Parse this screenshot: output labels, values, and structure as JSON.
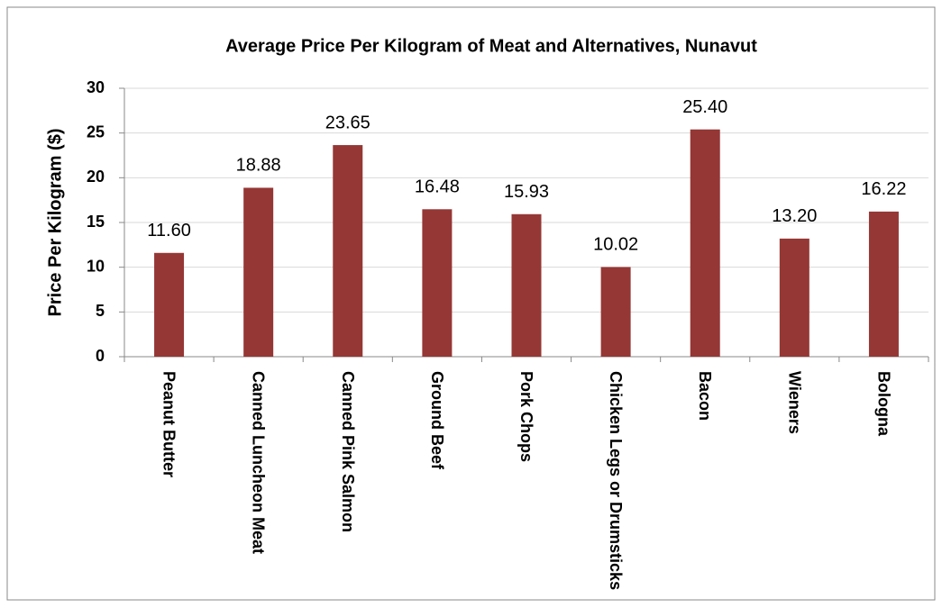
{
  "chart_data": {
    "type": "bar",
    "title": "Average Price Per Kilogram of Meat and Alternatives, Nunavut",
    "y_label": "Price Per Kilogram ($)",
    "categories": [
      "Peanut Butter",
      "Canned Luncheon Meat",
      "Canned Pink Salmon",
      "Ground Beef",
      "Pork Chops",
      "Chicken Legs or Drumsticks",
      "Bacon",
      "Wieners",
      "Bologna"
    ],
    "values": [
      11.6,
      18.88,
      23.65,
      16.48,
      15.93,
      10.02,
      25.4,
      13.2,
      16.22
    ],
    "value_labels": [
      "11.60",
      "18.88",
      "23.65",
      "16.48",
      "15.93",
      "10.02",
      "25.40",
      "13.20",
      "16.22"
    ],
    "color": "#953735",
    "ylim": [
      0,
      30
    ],
    "yticks": [
      0,
      5,
      10,
      15,
      20,
      25,
      30
    ],
    "grid": true
  }
}
